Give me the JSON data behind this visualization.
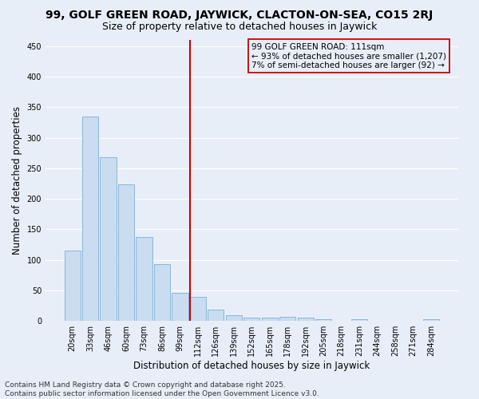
{
  "title_line1": "99, GOLF GREEN ROAD, JAYWICK, CLACTON-ON-SEA, CO15 2RJ",
  "title_line2": "Size of property relative to detached houses in Jaywick",
  "xlabel": "Distribution of detached houses by size in Jaywick",
  "ylabel": "Number of detached properties",
  "categories": [
    "20sqm",
    "33sqm",
    "46sqm",
    "60sqm",
    "73sqm",
    "86sqm",
    "99sqm",
    "112sqm",
    "126sqm",
    "139sqm",
    "152sqm",
    "165sqm",
    "178sqm",
    "192sqm",
    "205sqm",
    "218sqm",
    "231sqm",
    "244sqm",
    "258sqm",
    "271sqm",
    "284sqm"
  ],
  "values": [
    115,
    335,
    268,
    223,
    138,
    93,
    46,
    40,
    18,
    10,
    6,
    6,
    7,
    6,
    3,
    0,
    3,
    0,
    0,
    0,
    3
  ],
  "bar_color": "#c9dcf0",
  "bar_edge_color": "#7bafd4",
  "background_color": "#e8eef8",
  "grid_color": "#ffffff",
  "vline_index": 7,
  "vline_color": "#cc0000",
  "annotation_text_line1": "99 GOLF GREEN ROAD: 111sqm",
  "annotation_text_line2": "← 93% of detached houses are smaller (1,207)",
  "annotation_text_line3": "7% of semi-detached houses are larger (92) →",
  "annotation_box_color": "#cc0000",
  "ylim": [
    0,
    460
  ],
  "yticks": [
    0,
    50,
    100,
    150,
    200,
    250,
    300,
    350,
    400,
    450
  ],
  "footer_line1": "Contains HM Land Registry data © Crown copyright and database right 2025.",
  "footer_line2": "Contains public sector information licensed under the Open Government Licence v3.0.",
  "title_fontsize": 10,
  "subtitle_fontsize": 9,
  "axis_label_fontsize": 8.5,
  "tick_fontsize": 7,
  "annotation_fontsize": 7.5,
  "footer_fontsize": 6.5
}
